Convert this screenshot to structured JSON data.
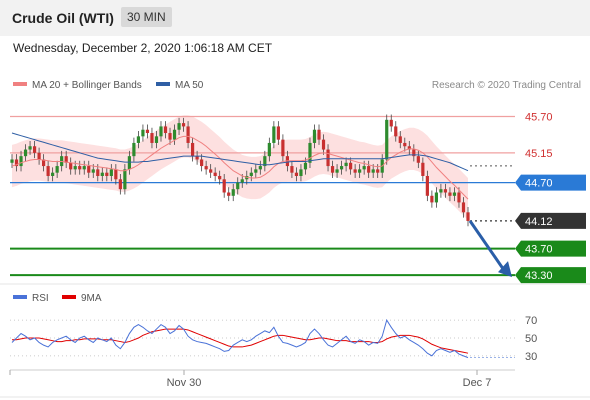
{
  "header": {
    "title": "Crude Oil (WTI)",
    "timeframe": "30 MIN"
  },
  "datetime": "Wednesday, December 2, 2020 1:06:18 AM CET",
  "legend": {
    "ma20": "MA 20 + Bollinger Bands",
    "ma20_color": "#f08080",
    "ma50": "MA 50",
    "ma50_color": "#2f5fa5",
    "copyright": "Research © 2020 Trading Central"
  },
  "rsi_legend": {
    "rsi": "RSI",
    "rsi_color": "#4a72d8",
    "ma": "9MA",
    "ma_color": "#e00000"
  },
  "chart_data": {
    "type": "line",
    "price_range": [
      43.15,
      45.95
    ],
    "levels": [
      {
        "value": 45.7,
        "label": "45.70",
        "kind": "resistance",
        "color": "#f0a0a0"
      },
      {
        "value": 45.15,
        "label": "45.15",
        "kind": "resistance",
        "color": "#f0a0a0"
      },
      {
        "value": 44.7,
        "label": "44.70",
        "kind": "pivot",
        "color": "#2a7ad6"
      },
      {
        "value": 44.12,
        "label": "44.12",
        "kind": "last",
        "color": "#333333"
      },
      {
        "value": 43.7,
        "label": "43.70",
        "kind": "support",
        "color": "#1a8a1a"
      },
      {
        "value": 43.3,
        "label": "43.30",
        "kind": "support",
        "color": "#1a8a1a"
      }
    ],
    "x_labels": [
      "Nov 30",
      "Dec 7"
    ],
    "price_close": [
      45.05,
      44.95,
      45.1,
      45.2,
      45.25,
      45.15,
      45.05,
      44.95,
      44.8,
      44.85,
      44.95,
      45.1,
      45.0,
      44.9,
      44.95,
      44.9,
      44.95,
      44.85,
      44.9,
      44.8,
      44.85,
      44.8,
      44.9,
      44.75,
      44.6,
      44.9,
      45.1,
      45.3,
      45.4,
      45.5,
      45.45,
      45.3,
      45.4,
      45.55,
      45.45,
      45.35,
      45.5,
      45.6,
      45.55,
      45.3,
      45.1,
      45.05,
      44.95,
      44.9,
      44.85,
      44.8,
      44.75,
      44.55,
      44.5,
      44.6,
      44.7,
      44.75,
      44.8,
      44.85,
      44.9,
      44.95,
      45.1,
      45.3,
      45.55,
      45.35,
      45.1,
      44.95,
      44.85,
      44.8,
      44.9,
      45.0,
      45.3,
      45.5,
      45.35,
      45.2,
      44.95,
      44.85,
      44.9,
      44.95,
      45.0,
      44.9,
      44.85,
      44.9,
      44.95,
      44.85,
      44.9,
      44.85,
      45.05,
      45.65,
      45.55,
      45.4,
      45.3,
      45.25,
      45.2,
      45.1,
      45.0,
      44.8,
      44.5,
      44.4,
      44.55,
      44.6,
      44.55,
      44.5,
      44.55,
      44.4,
      44.25,
      44.12
    ],
    "ma20": [
      44.95,
      44.97,
      45.0,
      45.02,
      45.04,
      45.05,
      45.05,
      45.04,
      45.03,
      45.02,
      45.02,
      45.02,
      45.01,
      45.0,
      44.99,
      44.98,
      44.97,
      44.96,
      44.95,
      44.94,
      44.93,
      44.92,
      44.91,
      44.9,
      44.88,
      44.88,
      44.9,
      44.93,
      44.97,
      45.02,
      45.07,
      45.12,
      45.17,
      45.22,
      45.26,
      45.3,
      45.34,
      45.38,
      45.4,
      45.4,
      45.38,
      45.34,
      45.3,
      45.25,
      45.19,
      45.13,
      45.07,
      45.0,
      44.94,
      44.88,
      44.84,
      44.8,
      44.78,
      44.77,
      44.77,
      44.78,
      44.82,
      44.87,
      44.94,
      44.99,
      45.02,
      45.03,
      45.03,
      45.03,
      45.03,
      45.04,
      45.07,
      45.11,
      45.14,
      45.15,
      45.14,
      45.12,
      45.1,
      45.08,
      45.06,
      45.04,
      45.02,
      45.0,
      44.99,
      44.97,
      44.95,
      44.94,
      44.95,
      45.02,
      45.08,
      45.12,
      45.16,
      45.19,
      45.21,
      45.21,
      45.19,
      45.15,
      45.09,
      45.01,
      44.93,
      44.86,
      44.79,
      44.72,
      44.66,
      44.59,
      44.52,
      44.45
    ],
    "ma50": [
      45.45,
      45.43,
      45.41,
      45.39,
      45.37,
      45.35,
      45.33,
      45.31,
      45.29,
      45.27,
      45.25,
      45.23,
      45.21,
      45.19,
      45.17,
      45.15,
      45.13,
      45.11,
      45.09,
      45.07,
      45.06,
      45.05,
      45.04,
      45.03,
      45.02,
      45.01,
      45.01,
      45.01,
      45.01,
      45.02,
      45.02,
      45.03,
      45.04,
      45.05,
      45.06,
      45.07,
      45.08,
      45.09,
      45.1,
      45.1,
      45.1,
      45.1,
      45.1,
      45.09,
      45.08,
      45.07,
      45.06,
      45.05,
      45.04,
      45.03,
      45.02,
      45.01,
      45.0,
      44.99,
      44.98,
      44.97,
      44.97,
      44.97,
      44.98,
      44.99,
      45.0,
      45.01,
      45.02,
      45.02,
      45.02,
      45.02,
      45.03,
      45.04,
      45.05,
      45.06,
      45.06,
      45.06,
      45.06,
      45.06,
      45.06,
      45.06,
      45.06,
      45.06,
      45.06,
      45.06,
      45.06,
      45.06,
      45.06,
      45.07,
      45.08,
      45.09,
      45.1,
      45.11,
      45.12,
      45.12,
      45.12,
      45.11,
      45.1,
      45.08,
      45.06,
      45.04,
      45.02,
      45.0,
      44.97,
      44.94,
      44.91,
      44.88
    ],
    "forecast_arrow": {
      "from": 44.12,
      "to": 43.3
    },
    "rsi": {
      "ticks": [
        70,
        50,
        30
      ],
      "range": [
        22,
        78
      ],
      "rsi": [
        45,
        50,
        55,
        52,
        48,
        50,
        45,
        42,
        40,
        45,
        48,
        50,
        52,
        48,
        45,
        50,
        52,
        48,
        45,
        50,
        48,
        46,
        50,
        42,
        38,
        45,
        55,
        62,
        65,
        62,
        58,
        55,
        60,
        65,
        62,
        55,
        58,
        64,
        60,
        52,
        48,
        46,
        45,
        44,
        42,
        40,
        38,
        35,
        36,
        42,
        45,
        48,
        46,
        48,
        52,
        55,
        58,
        56,
        62,
        52,
        45,
        44,
        42,
        40,
        42,
        45,
        55,
        60,
        55,
        48,
        42,
        40,
        44,
        48,
        52,
        46,
        44,
        48,
        46,
        42,
        45,
        44,
        52,
        70,
        62,
        55,
        50,
        52,
        48,
        45,
        42,
        38,
        33,
        30,
        36,
        38,
        36,
        34,
        36,
        32,
        30,
        28
      ],
      "ma9": [
        48,
        48,
        49,
        50,
        50,
        50,
        50,
        49,
        48,
        47,
        46,
        46,
        47,
        47,
        48,
        48,
        49,
        49,
        49,
        49,
        48,
        48,
        48,
        47,
        46,
        45,
        46,
        48,
        50,
        53,
        55,
        57,
        58,
        59,
        60,
        60,
        60,
        60,
        60,
        59,
        57,
        55,
        53,
        51,
        49,
        47,
        45,
        43,
        41,
        40,
        40,
        40,
        41,
        42,
        44,
        46,
        48,
        50,
        52,
        53,
        53,
        52,
        51,
        50,
        49,
        48,
        48,
        49,
        50,
        50,
        49,
        48,
        47,
        47,
        47,
        46,
        46,
        46,
        46,
        46,
        45,
        45,
        46,
        49,
        51,
        52,
        53,
        53,
        53,
        52,
        51,
        49,
        46,
        43,
        41,
        39,
        38,
        37,
        36,
        35,
        34,
        33
      ]
    }
  }
}
